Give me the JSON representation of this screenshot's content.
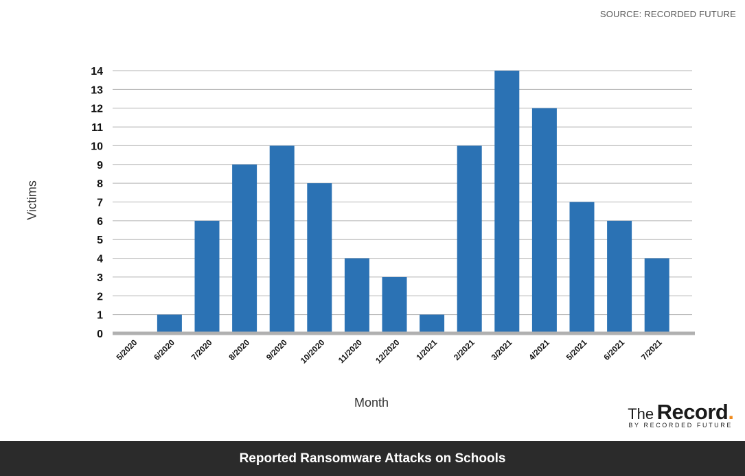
{
  "source_text": "SOURCE: RECORDED FUTURE",
  "chart_data": {
    "type": "bar",
    "title": "Reported Ransomware Attacks on Schools",
    "xlabel": "Month",
    "ylabel": "Victims",
    "categories": [
      "5/2020",
      "6/2020",
      "7/2020",
      "8/2020",
      "9/2020",
      "10/2020",
      "11/2020",
      "12/2020",
      "1/2021",
      "2/2021",
      "3/2021",
      "4/2021",
      "5/2021",
      "6/2021",
      "7/2021"
    ],
    "values": [
      0,
      1,
      6,
      9,
      10,
      8,
      4,
      3,
      1,
      10,
      14,
      12,
      7,
      6,
      4
    ],
    "ylim": [
      0,
      14
    ],
    "yticks": [
      "0",
      "1",
      "2",
      "3",
      "4",
      "5",
      "6",
      "7",
      "8",
      "9",
      "10",
      "11",
      "12",
      "13",
      "14"
    ],
    "grid": true,
    "legend": "none",
    "bar_color": "#2b72b4",
    "grid_color": "#b3b3b3",
    "baseline_color": "#b0b0b0"
  },
  "logo": {
    "the": "The",
    "record": "Record",
    "dot": ".",
    "sub": "BY RECORDED FUTURE",
    "accent_color": "#f08a1c"
  },
  "footer": {
    "title": "Reported Ransomware Attacks on Schools",
    "background": "#2b2b2b"
  }
}
